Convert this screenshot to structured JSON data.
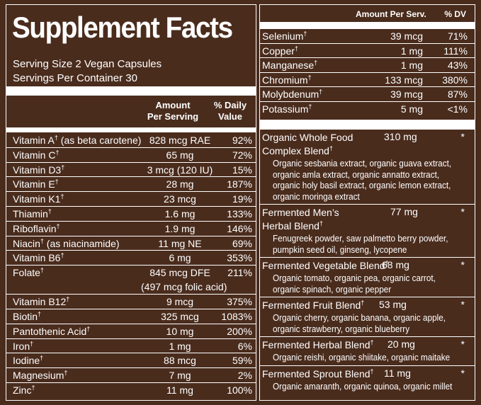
{
  "title": "Supplement Facts",
  "serving_size": "Serving Size 2 Vegan Capsules",
  "servings_per_container": "Servings Per Container 30",
  "left_header": {
    "amount": "Amount\nPer Serving",
    "amount_l1": "Amount",
    "amount_l2": "Per Serving",
    "dv_l1": "% Daily",
    "dv_l2": "Value"
  },
  "dagger": "†",
  "nutrients_left": [
    {
      "name": "Vitamin A",
      "note": " (as beta carotene)",
      "amount": "828 mcg RAE",
      "dv": "92%"
    },
    {
      "name": "Vitamin C",
      "note": "",
      "amount": "65 mg",
      "dv": "72%"
    },
    {
      "name": "Vitamin D3",
      "note": "",
      "amount": "3 mcg (120 IU)",
      "dv": "15%"
    },
    {
      "name": "Vitamin E",
      "note": "",
      "amount": "28 mg",
      "dv": "187%"
    },
    {
      "name": "Vitamin K1",
      "note": "",
      "amount": "23 mcg",
      "dv": "19%"
    },
    {
      "name": "Thiamin",
      "note": "",
      "amount": "1.6 mg",
      "dv": "133%"
    },
    {
      "name": "Riboflavin",
      "note": "",
      "amount": "1.9 mg",
      "dv": "146%"
    },
    {
      "name": "Niacin",
      "note": " (as niacinamide)",
      "amount": "11 mg NE",
      "dv": "69%"
    },
    {
      "name": "Vitamin B6",
      "note": "",
      "amount": "6 mg",
      "dv": "353%"
    },
    {
      "name": "Folate",
      "note": "",
      "amount": "845 mcg DFE",
      "dv": "211%",
      "sub": "(497 mcg folic acid)"
    },
    {
      "name": "Vitamin B12",
      "note": "",
      "amount": "9 mcg",
      "dv": "375%"
    },
    {
      "name": "Biotin",
      "note": "",
      "amount": "325 mcg",
      "dv": "1083%"
    },
    {
      "name": "Pantothenic Acid",
      "note": "",
      "amount": "10 mg",
      "dv": "200%"
    },
    {
      "name": "Iron",
      "note": "",
      "amount": "1 mg",
      "dv": "6%"
    },
    {
      "name": "Iodine",
      "note": "",
      "amount": "88 mcg",
      "dv": "59%"
    },
    {
      "name": "Magnesium",
      "note": "",
      "amount": "7 mg",
      "dv": "2%"
    },
    {
      "name": "Zinc",
      "note": "",
      "amount": "11 mg",
      "dv": "100%"
    }
  ],
  "right_header": {
    "amount": "Amount Per Serv.",
    "dv": "% DV"
  },
  "nutrients_right": [
    {
      "name": "Selenium",
      "amount": "39 mcg",
      "dv": "71%"
    },
    {
      "name": "Copper",
      "amount": "1 mg",
      "dv": "111%"
    },
    {
      "name": "Manganese",
      "amount": "1 mg",
      "dv": "43%"
    },
    {
      "name": "Chromium",
      "amount": "133 mcg",
      "dv": "380%"
    },
    {
      "name": "Molybdenum",
      "amount": "39 mcg",
      "dv": "87%"
    },
    {
      "name": "Potassium",
      "amount": "5 mg",
      "dv": "<1%"
    }
  ],
  "blends": [
    {
      "name_l1": "Organic Whole Food",
      "name_l2": "Complex Blend",
      "amount": "310 mg",
      "dv": "*",
      "desc": [
        "Organic sesbania extract, organic guava extract,",
        "organic amla extract, organic annatto extract,",
        "organic holy basil extract, organic lemon extract,",
        "organic moringa extract"
      ]
    },
    {
      "name_l1": "Fermented Men’s",
      "name_l2": "Herbal Blend",
      "amount": "77 mg",
      "dv": "*",
      "desc": [
        "Fenugreek powder, saw palmetto berry powder,",
        "pumpkin seed oil, ginseng, lycopene"
      ]
    },
    {
      "name_l1": "Fermented Vegetable Blend",
      "name_l2": "",
      "amount": "68 mg",
      "dv": "*",
      "desc": [
        "Organic tomato, organic pea, organic carrot,",
        "organic spinach, organic pepper"
      ]
    },
    {
      "name_l1": "Fermented Fruit Blend",
      "name_l2": "",
      "amount": "53 mg",
      "dv": "*",
      "desc": [
        "Organic cherry, organic banana, organic apple,",
        "organic strawberry, organic blueberry"
      ]
    },
    {
      "name_l1": "Fermented Herbal Blend",
      "name_l2": "",
      "amount": "20 mg",
      "dv": "*",
      "desc": [
        "Organic reishi, organic shiitake, organic maitake"
      ]
    },
    {
      "name_l1": "Fermented Sprout Blend",
      "name_l2": "",
      "amount": "11 mg",
      "dv": "*",
      "desc": [
        "Organic amaranth, organic quinoa, organic millet"
      ]
    }
  ],
  "colors": {
    "background": "#4a2c1d",
    "text": "#ffffff"
  }
}
